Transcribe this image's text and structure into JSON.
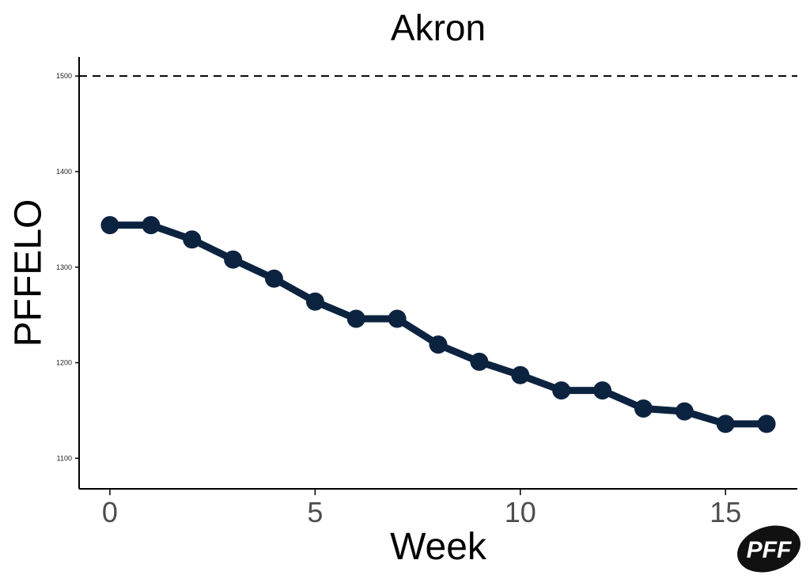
{
  "logo": {
    "text": "PFF"
  },
  "chart_data": {
    "type": "line",
    "title": "Akron",
    "xlabel": "Week",
    "ylabel": "PFFELO",
    "x": [
      0,
      1,
      2,
      3,
      4,
      5,
      6,
      7,
      8,
      9,
      10,
      11,
      12,
      13,
      14,
      15,
      16
    ],
    "series": [
      {
        "values": [
          1344,
          1344,
          1329,
          1308,
          1288,
          1264,
          1246,
          1246,
          1219,
          1201,
          1187,
          1171,
          1171,
          1152,
          1149,
          1136,
          1136
        ],
        "color": "#0c2340"
      }
    ],
    "reference_line": {
      "y": 1500,
      "style": "dashed",
      "color": "#000000"
    },
    "xticks": [
      0,
      5,
      10,
      15
    ],
    "yticks": [
      1100,
      1200,
      1300,
      1400,
      1500
    ],
    "xlim": [
      -0.75,
      16.75
    ],
    "ylim": [
      1068,
      1520
    ],
    "grid": false,
    "legend": "none"
  }
}
